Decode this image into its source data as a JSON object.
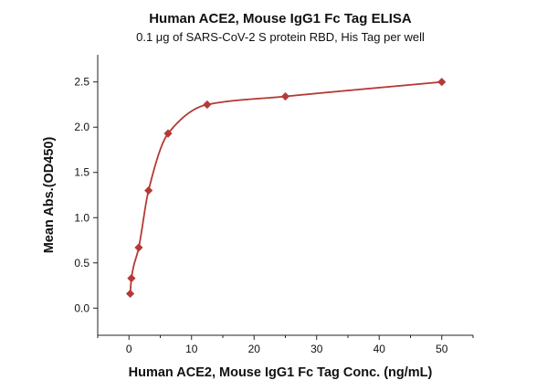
{
  "chart_data": {
    "type": "scatter",
    "title": "Human ACE2, Mouse IgG1 Fc Tag ELISA",
    "subtitle": "0.1 μg of SARS-CoV-2 S protein RBD, His Tag per well",
    "xlabel": "Human ACE2, Mouse IgG1 Fc Tag Conc. (ng/mL)",
    "ylabel": "Mean Abs.(OD450)",
    "xlim": [
      -5,
      55
    ],
    "ylim": [
      -0.3,
      2.8
    ],
    "x_ticks": [
      0,
      10,
      20,
      30,
      40,
      50
    ],
    "y_ticks": [
      0.0,
      0.5,
      1.0,
      1.5,
      2.0,
      2.5
    ],
    "y_tick_labels": [
      "0.0",
      "0.5",
      "1.0",
      "1.5",
      "2.0",
      "2.5"
    ],
    "grid": false,
    "colors": {
      "series": "#b43a36"
    },
    "series": [
      {
        "marker": "diamond",
        "fit": "4PL",
        "points": [
          {
            "x": 0.195,
            "y": 0.16
          },
          {
            "x": 0.39,
            "y": 0.33
          },
          {
            "x": 1.56,
            "y": 0.67
          },
          {
            "x": 3.125,
            "y": 1.3
          },
          {
            "x": 6.25,
            "y": 1.93
          },
          {
            "x": 12.5,
            "y": 2.25
          },
          {
            "x": 25,
            "y": 2.34
          },
          {
            "x": 50,
            "y": 2.5
          }
        ]
      }
    ]
  }
}
